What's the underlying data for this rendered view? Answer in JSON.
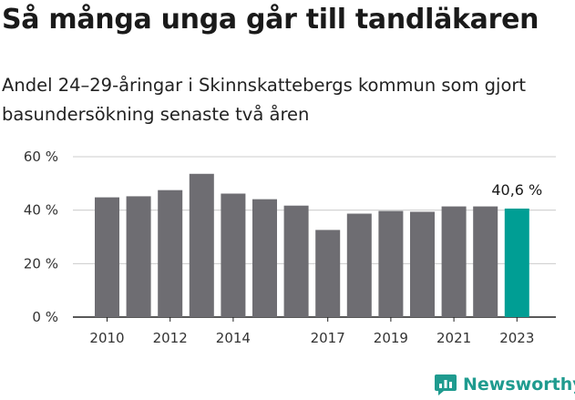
{
  "header": {
    "title": "Så många unga går till tandläkaren",
    "subtitle": "Andel 24–29-åringar i Skinnskattebergs kommun som gjort basundersökning senaste två åren"
  },
  "brand": {
    "name": "Newsworthy",
    "color": "#1f9b8f"
  },
  "colors": {
    "bar": "#6e6d72",
    "highlight": "#009e94",
    "grid": "#cccccc",
    "axis": "#222222"
  },
  "chart_data": {
    "type": "bar",
    "title": "Så många unga går till tandläkaren",
    "subtitle": "Andel 24–29-åringar i Skinnskattebergs kommun som gjort basundersökning senaste två åren",
    "categories": [
      "2010",
      "2011",
      "2012",
      "2013",
      "2014",
      "2015",
      "2016",
      "2017",
      "2018",
      "2019",
      "2020",
      "2021",
      "2022",
      "2023"
    ],
    "values": [
      44.8,
      45.2,
      47.5,
      53.6,
      46.2,
      44.1,
      41.7,
      32.6,
      38.7,
      39.7,
      39.4,
      41.4,
      41.4,
      40.6
    ],
    "highlight_index": 13,
    "highlight_label": "40,6 %",
    "x_tick_labels": [
      "2010",
      "2012",
      "2014",
      "2017",
      "2019",
      "2021",
      "2023"
    ],
    "y_ticks": [
      0,
      20,
      40,
      60
    ],
    "y_tick_labels": [
      "0 %",
      "20 %",
      "40 %",
      "60 %"
    ],
    "ylim": [
      0,
      60
    ],
    "grid": true,
    "legend": "none"
  }
}
